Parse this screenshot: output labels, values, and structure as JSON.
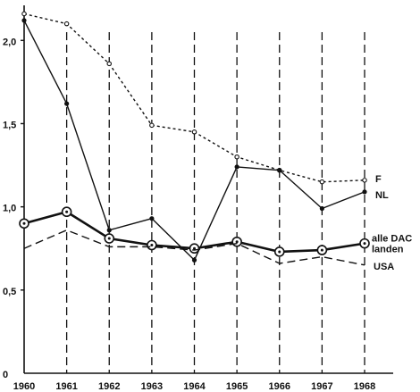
{
  "colors": {
    "ink": "#111111",
    "background": "#ffffff"
  },
  "chart_data": {
    "type": "line",
    "title": "",
    "xlabel": "",
    "ylabel": "",
    "x": [
      "1960",
      "1961",
      "1962",
      "1963",
      "1964",
      "1965",
      "1966",
      "1967",
      "1968"
    ],
    "ylim": [
      0,
      2.2
    ],
    "yticks": [
      {
        "value": 0,
        "label": "0"
      },
      {
        "value": 0.5,
        "label": "0,5"
      },
      {
        "value": 1.0,
        "label": "1,0"
      },
      {
        "value": 1.5,
        "label": "1,5"
      },
      {
        "value": 2.0,
        "label": "2,0"
      }
    ],
    "grid": "dashed vertical lines at each year",
    "series": [
      {
        "name": "F",
        "style": "dotted",
        "marker": "small-open-circle",
        "values": [
          2.16,
          2.1,
          1.86,
          1.49,
          1.45,
          1.3,
          1.22,
          1.15,
          1.16
        ]
      },
      {
        "name": "NL",
        "style": "solid",
        "marker": "dot",
        "values": [
          2.12,
          1.62,
          0.86,
          0.93,
          0.68,
          1.24,
          1.22,
          0.99,
          1.09
        ]
      },
      {
        "name": "alle DAC\nlanden",
        "style": "thick-solid",
        "marker": "circled-dot",
        "values": [
          0.9,
          0.97,
          0.81,
          0.77,
          0.75,
          0.79,
          0.73,
          0.74,
          0.78
        ]
      },
      {
        "name": "USA",
        "style": "dashed",
        "marker": "none",
        "values": [
          0.75,
          0.86,
          0.76,
          0.76,
          0.74,
          0.78,
          0.66,
          0.7,
          0.65
        ]
      }
    ]
  }
}
